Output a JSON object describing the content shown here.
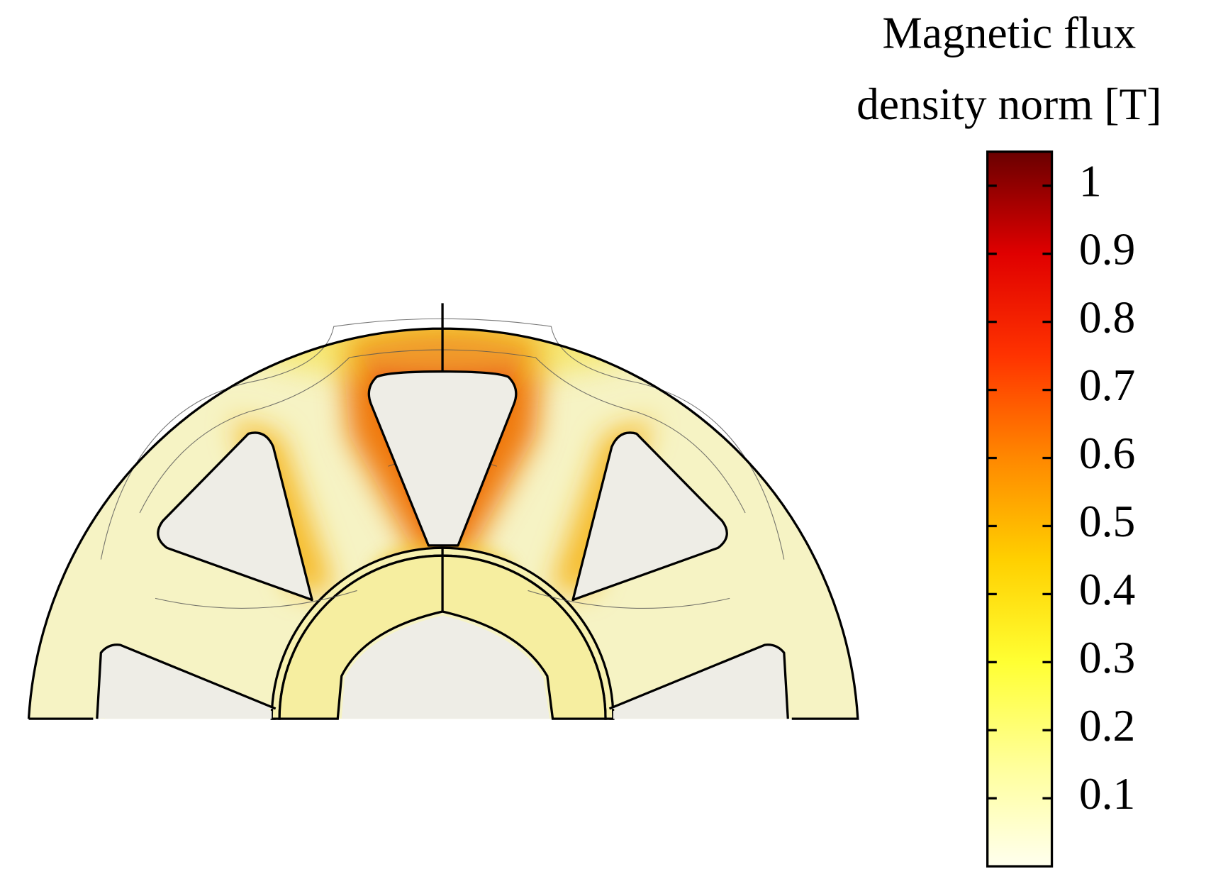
{
  "chart_data": {
    "type": "field",
    "title_lines": [
      "Magnetic flux",
      "density norm [T]"
    ],
    "clim": [
      0,
      1.05
    ],
    "cticks": [
      0.1,
      0.2,
      0.3,
      0.4,
      0.5,
      0.6,
      0.7,
      0.8,
      0.9,
      1
    ],
    "colormap": [
      "#ffffee",
      "#ffff99",
      "#ffff33",
      "#ffd000",
      "#ff8800",
      "#ff3300",
      "#e00000",
      "#6a0000"
    ]
  }
}
